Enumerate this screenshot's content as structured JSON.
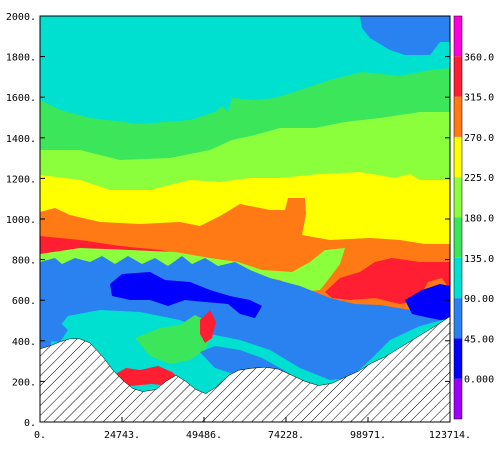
{
  "chart_data": {
    "type": "heatmap",
    "title": "",
    "xlabel": "",
    "ylabel": "",
    "xlim": [
      0,
      123714
    ],
    "ylim": [
      0,
      2000
    ],
    "x_tick_labels": [
      "0.",
      "24743.",
      "49486.",
      "74228.",
      "98971.",
      "123714."
    ],
    "y_tick_labels": [
      "0.",
      "200.",
      "400.",
      "600.",
      "800.",
      "1000.",
      "1200.",
      "1400.",
      "1600.",
      "1800.",
      "2000."
    ],
    "colorbar": {
      "labels": [
        "0.000",
        "45.00",
        "90.00",
        "135.0",
        "180.0",
        "225.0",
        "270.0",
        "315.0",
        "360.0"
      ],
      "levels": [
        0,
        45,
        90,
        135,
        180,
        225,
        270,
        315,
        360
      ],
      "colors": [
        "#a000ff",
        "#0000ff",
        "#2a82f0",
        "#00e0d0",
        "#3ce65a",
        "#8cff3c",
        "#ffff00",
        "#ff7a14",
        "#ff1e32",
        "#ff00dc"
      ]
    },
    "terrain": {
      "pattern": "hatched",
      "profile_x": [
        0,
        3000,
        6000,
        9000,
        12000,
        15000,
        19000,
        22000,
        25000,
        28000,
        31000,
        35000,
        38000,
        41000,
        44000,
        47000,
        50000,
        53000,
        57000,
        60000,
        64000,
        68000,
        72000,
        76000,
        80000,
        84000,
        88000,
        92000,
        96000,
        100000,
        104000,
        108000,
        112000,
        116000,
        120000,
        123714
      ],
      "profile_y": [
        360,
        375,
        395,
        410,
        410,
        390,
        320,
        255,
        205,
        165,
        150,
        160,
        200,
        230,
        200,
        160,
        140,
        170,
        230,
        255,
        265,
        270,
        260,
        230,
        200,
        180,
        190,
        220,
        250,
        290,
        320,
        360,
        400,
        440,
        480,
        520
      ]
    }
  }
}
